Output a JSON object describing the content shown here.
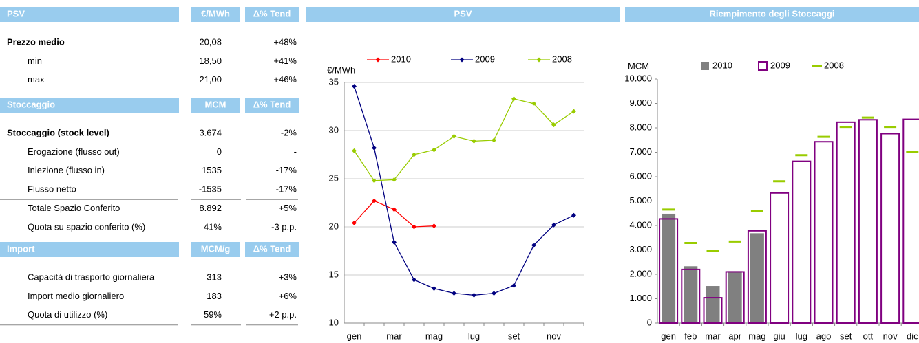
{
  "table": {
    "sections": [
      {
        "header": [
          "PSV",
          "€/MWh",
          "Δ% Tend"
        ],
        "rows": [
          {
            "label": "Prezzo medio",
            "value": "20,08",
            "change": "+48%",
            "bold": true
          },
          {
            "label": "min",
            "value": "18,50",
            "change": "+41%"
          },
          {
            "label": "max",
            "value": "21,00",
            "change": "+46%"
          }
        ]
      },
      {
        "header": [
          "Stoccaggio",
          "MCM",
          "Δ% Tend"
        ],
        "rows": [
          {
            "label": "Stoccaggio (stock level)",
            "value": "3.674",
            "change": "-2%",
            "bold": true
          },
          {
            "label": "Erogazione (flusso out)",
            "value": "0",
            "change": "-"
          },
          {
            "label": "Iniezione (flusso in)",
            "value": "1535",
            "change": "-17%"
          },
          {
            "label": "Flusso netto",
            "value": "-1535",
            "change": "-17%",
            "rule": true
          },
          {
            "label": "Totale Spazio Conferito",
            "value": "8.892",
            "change": "+5%"
          },
          {
            "label": "Quota su spazio conferito (%)",
            "value": "41%",
            "change": "-3 p.p."
          }
        ]
      },
      {
        "header": [
          "Import",
          "MCM/g",
          "Δ% Tend"
        ],
        "rows": [
          {
            "label": "Capacità di trasporto giornaliera",
            "value": "313",
            "change": "+3%"
          },
          {
            "label": "Import medio giornaliero",
            "value": "183",
            "change": "+6%"
          },
          {
            "label": "Quota di utilizzo (%)",
            "value": "59%",
            "change": "+2 p.p.",
            "rule": true
          }
        ]
      }
    ]
  },
  "chart_data": [
    {
      "type": "line",
      "title": "PSV",
      "y_label": "€/MWh",
      "categories": [
        "gen",
        null,
        "mar",
        null,
        "mag",
        null,
        "lug",
        null,
        "set",
        null,
        "nov",
        null
      ],
      "series": [
        {
          "name": "2010",
          "color": "#ff0000",
          "values": [
            20.4,
            22.7,
            21.8,
            20.0,
            20.1,
            null,
            null,
            null,
            null,
            null,
            null,
            null
          ]
        },
        {
          "name": "2009",
          "color": "#000080",
          "values": [
            34.6,
            28.2,
            18.4,
            14.5,
            13.6,
            13.1,
            12.9,
            13.1,
            13.9,
            18.1,
            20.2,
            21.2
          ]
        },
        {
          "name": "2008",
          "color": "#99cc00",
          "values": [
            27.9,
            24.8,
            24.9,
            27.5,
            28.0,
            29.4,
            28.9,
            29.0,
            33.3,
            32.8,
            30.6,
            32.0
          ]
        }
      ],
      "ylim": [
        10,
        35
      ],
      "yticks": [
        10,
        15,
        20,
        25,
        30,
        35
      ],
      "grid": true,
      "legend": "top"
    },
    {
      "type": "bar",
      "title": "Riempimento degli Stoccaggi",
      "y_label": "MCM",
      "categories": [
        "gen",
        "feb",
        "mar",
        "apr",
        "mag",
        "giu",
        "lug",
        "ago",
        "set",
        "ott",
        "nov",
        "dic"
      ],
      "series": [
        {
          "name": "2010",
          "color": "#808080",
          "style": "bar",
          "values": [
            4480,
            2330,
            1520,
            2130,
            3680,
            null,
            null,
            null,
            null,
            null,
            null,
            null
          ]
        },
        {
          "name": "2009",
          "color": "#800080",
          "style": "outline",
          "values": [
            4270,
            2200,
            1040,
            2100,
            3780,
            5330,
            6630,
            7430,
            8230,
            8330,
            7760,
            8350
          ]
        },
        {
          "name": "2008",
          "color": "#99cc00",
          "style": "dash",
          "values": [
            4650,
            3280,
            2960,
            3340,
            4600,
            5810,
            6880,
            7630,
            8040,
            8420,
            8040,
            7020
          ]
        }
      ],
      "ylim": [
        0,
        10000
      ],
      "yticks": [
        0,
        {
          "value": 1000,
          "label": "1.000"
        },
        {
          "value": 2000,
          "label": "2.000"
        },
        {
          "value": 3000,
          "label": "3.000"
        },
        {
          "value": 4000,
          "label": "4.000"
        },
        {
          "value": 5000,
          "label": "5.000"
        },
        {
          "value": 6000,
          "label": "6.000"
        },
        {
          "value": 7000,
          "label": "7.000"
        },
        {
          "value": 8000,
          "label": "8.000"
        },
        {
          "value": 9000,
          "label": "9.000"
        },
        {
          "value": 10000,
          "label": "10.000"
        }
      ],
      "grid": false,
      "legend": "top"
    }
  ]
}
